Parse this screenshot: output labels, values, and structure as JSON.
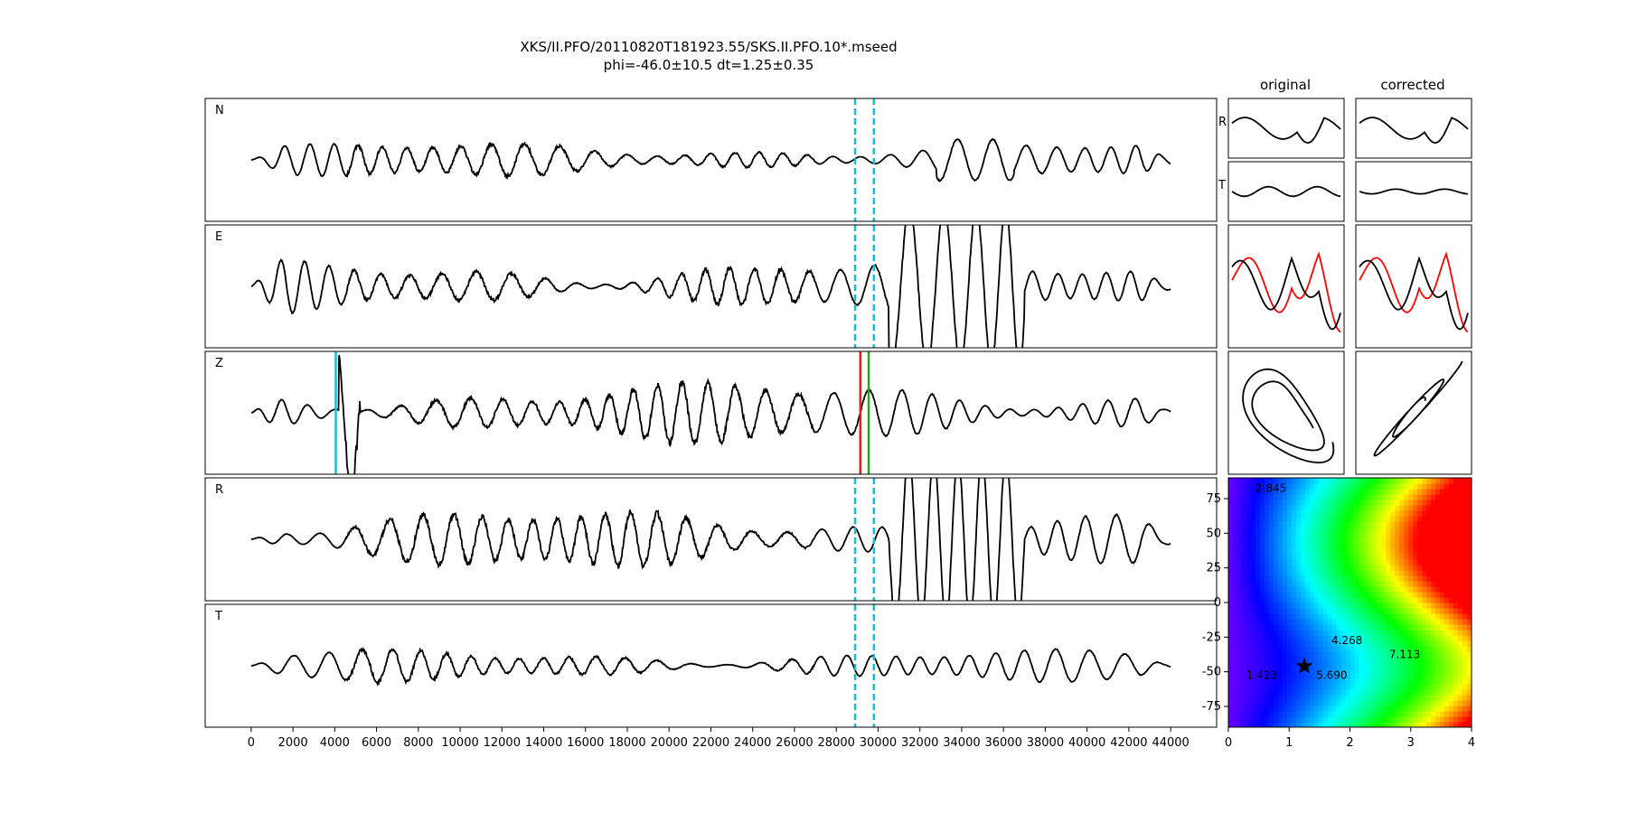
{
  "title": {
    "line1": "XKS/II.PFO/20110820T181923.55/SKS.II.PFO.10*.mseed",
    "line2": "phi=-46.0±10.5 dt=1.25±0.35"
  },
  "column_titles": {
    "original": "original",
    "corrected": "corrected"
  },
  "chart_data": [
    {
      "type": "line",
      "id": "waveforms",
      "panels": [
        "N",
        "E",
        "Z",
        "R",
        "T"
      ],
      "xlim": [
        -2200,
        46200
      ],
      "x_ticks": [
        "0",
        "2000",
        "4000",
        "6000",
        "8000",
        "10000",
        "12000",
        "14000",
        "16000",
        "18000",
        "20000",
        "22000",
        "24000",
        "26000",
        "28000",
        "30000",
        "32000",
        "34000",
        "36000",
        "38000",
        "40000",
        "42000",
        "44000"
      ],
      "x_tick_values": [
        0,
        2000,
        4000,
        6000,
        8000,
        10000,
        12000,
        14000,
        16000,
        18000,
        20000,
        22000,
        24000,
        26000,
        28000,
        30000,
        32000,
        34000,
        36000,
        38000,
        40000,
        42000,
        44000
      ],
      "x_range": [
        0,
        44000
      ],
      "window_lines": {
        "color": "#17becf",
        "style": "dashed",
        "x": [
          28900,
          29800
        ],
        "panels": [
          "N",
          "E",
          "R",
          "T"
        ]
      },
      "z_markers": [
        {
          "x": 4050,
          "color": "#17becf"
        },
        {
          "x": 29150,
          "color": "#d62728"
        },
        {
          "x": 29550,
          "color": "#2ca02c"
        }
      ],
      "line_color": "#000000"
    },
    {
      "type": "line",
      "id": "particle_panels",
      "rows": [
        "R",
        "T",
        "",
        ""
      ],
      "columns": [
        "original",
        "corrected"
      ],
      "series_colors": [
        "#000000",
        "#ff0000"
      ]
    },
    {
      "type": "heatmap",
      "id": "error_surface",
      "xlim": [
        0,
        4
      ],
      "ylim": [
        -90,
        90
      ],
      "x_ticks": [
        "0",
        "1",
        "2",
        "3",
        "4"
      ],
      "x_tick_values": [
        0,
        1,
        2,
        3,
        4
      ],
      "y_ticks": [
        "75",
        "50",
        "25",
        "0",
        "-25",
        "-50",
        "-75"
      ],
      "y_tick_values": [
        75,
        50,
        25,
        0,
        -25,
        -50,
        -75
      ],
      "contour_labels": [
        "1.423",
        "2.845",
        "4.268",
        "5.690",
        "7.113"
      ],
      "best": {
        "dt": 1.25,
        "phi": -46.0
      },
      "colormap": "hsv"
    }
  ]
}
